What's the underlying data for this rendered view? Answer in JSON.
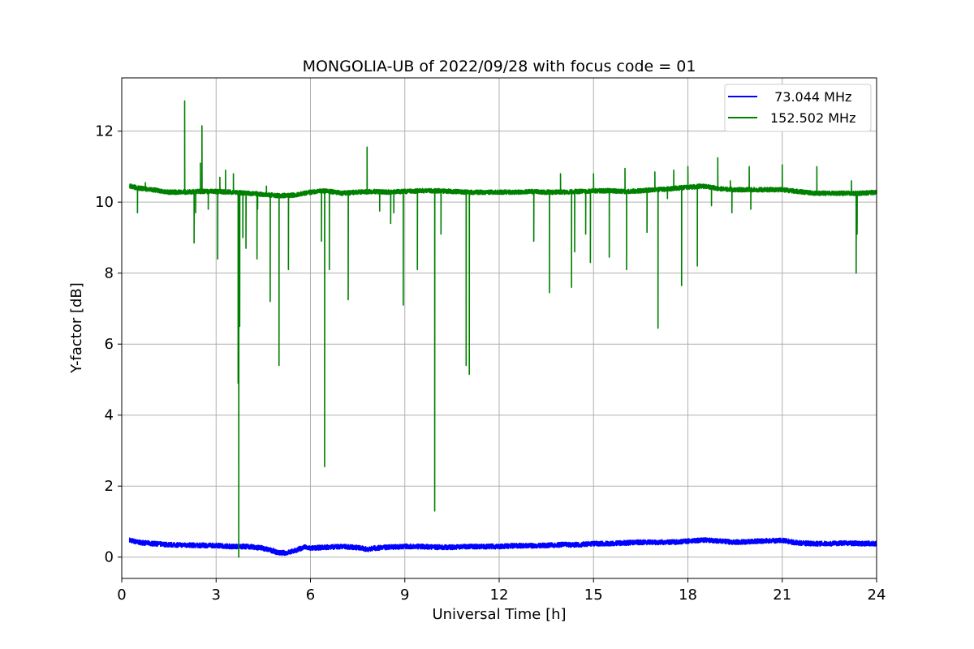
{
  "chart_data": {
    "type": "line",
    "title": "MONGOLIA-UB of 2022/09/28 with focus code = 01",
    "xlabel": "Universal Time [h]",
    "ylabel": "Y-factor [dB]",
    "xlim": [
      0,
      24
    ],
    "ylim": [
      -0.6,
      13.5
    ],
    "xticks": [
      0,
      3,
      6,
      9,
      12,
      15,
      18,
      21,
      24
    ],
    "yticks": [
      0,
      2,
      4,
      6,
      8,
      10,
      12
    ],
    "grid": true,
    "legend_position": "top-right",
    "series": [
      {
        "name": " 73.044 MHz",
        "color": "#0000ff",
        "x": [
          0.25,
          0.5,
          1.0,
          1.5,
          2.0,
          2.5,
          3.0,
          3.5,
          4.0,
          4.5,
          4.8,
          5.0,
          5.2,
          5.5,
          5.8,
          6.0,
          6.5,
          7.0,
          7.5,
          7.8,
          8.0,
          8.5,
          9.0,
          9.5,
          10.0,
          10.5,
          11.0,
          11.5,
          12.0,
          12.5,
          13.0,
          13.5,
          14.0,
          14.5,
          15.0,
          15.5,
          16.0,
          16.5,
          17.0,
          17.5,
          18.0,
          18.5,
          19.0,
          19.5,
          20.0,
          20.5,
          21.0,
          21.5,
          22.0,
          22.5,
          23.0,
          23.5,
          24.0
        ],
        "y": [
          0.48,
          0.42,
          0.38,
          0.35,
          0.34,
          0.33,
          0.33,
          0.3,
          0.3,
          0.25,
          0.18,
          0.12,
          0.12,
          0.18,
          0.28,
          0.25,
          0.28,
          0.3,
          0.27,
          0.22,
          0.25,
          0.28,
          0.3,
          0.3,
          0.28,
          0.28,
          0.3,
          0.3,
          0.3,
          0.32,
          0.32,
          0.33,
          0.35,
          0.35,
          0.38,
          0.38,
          0.4,
          0.42,
          0.42,
          0.42,
          0.45,
          0.48,
          0.45,
          0.42,
          0.44,
          0.46,
          0.47,
          0.4,
          0.38,
          0.38,
          0.4,
          0.38,
          0.38
        ]
      },
      {
        "name": "152.502 MHz",
        "color": "#008000",
        "x": [
          0.25,
          0.5,
          1.0,
          1.5,
          2.0,
          2.5,
          3.0,
          3.5,
          4.0,
          4.5,
          5.0,
          5.5,
          6.0,
          6.5,
          7.0,
          7.5,
          8.0,
          8.5,
          9.0,
          9.5,
          10.0,
          10.5,
          11.0,
          11.5,
          12.0,
          12.5,
          13.0,
          13.5,
          14.0,
          14.5,
          15.0,
          15.5,
          16.0,
          16.5,
          17.0,
          17.5,
          18.0,
          18.5,
          19.0,
          19.5,
          20.0,
          20.5,
          21.0,
          21.5,
          22.0,
          22.5,
          23.0,
          23.5,
          24.0
        ],
        "y": [
          10.45,
          10.4,
          10.35,
          10.28,
          10.28,
          10.3,
          10.3,
          10.28,
          10.25,
          10.22,
          10.18,
          10.2,
          10.28,
          10.32,
          10.25,
          10.28,
          10.3,
          10.28,
          10.3,
          10.32,
          10.32,
          10.3,
          10.28,
          10.28,
          10.28,
          10.28,
          10.3,
          10.28,
          10.28,
          10.3,
          10.32,
          10.32,
          10.3,
          10.32,
          10.35,
          10.38,
          10.42,
          10.45,
          10.38,
          10.35,
          10.35,
          10.35,
          10.35,
          10.3,
          10.25,
          10.25,
          10.25,
          10.25,
          10.28
        ],
        "spikes": [
          {
            "x": 0.5,
            "y": 9.7
          },
          {
            "x": 0.75,
            "y": 10.55
          },
          {
            "x": 2.0,
            "y": 12.85
          },
          {
            "x": 2.3,
            "y": 8.85
          },
          {
            "x": 2.35,
            "y": 9.7
          },
          {
            "x": 2.5,
            "y": 11.1
          },
          {
            "x": 2.55,
            "y": 12.15
          },
          {
            "x": 2.75,
            "y": 9.8
          },
          {
            "x": 3.05,
            "y": 8.4
          },
          {
            "x": 3.12,
            "y": 10.7
          },
          {
            "x": 3.3,
            "y": 10.9
          },
          {
            "x": 3.55,
            "y": 10.8
          },
          {
            "x": 3.7,
            "y": 4.9
          },
          {
            "x": 3.72,
            "y": 0.0
          },
          {
            "x": 3.75,
            "y": 6.5
          },
          {
            "x": 3.85,
            "y": 9.0
          },
          {
            "x": 3.95,
            "y": 8.7
          },
          {
            "x": 4.3,
            "y": 8.4
          },
          {
            "x": 4.32,
            "y": 9.8
          },
          {
            "x": 4.6,
            "y": 10.45
          },
          {
            "x": 4.72,
            "y": 7.2
          },
          {
            "x": 5.0,
            "y": 5.4
          },
          {
            "x": 5.3,
            "y": 8.1
          },
          {
            "x": 6.35,
            "y": 8.9
          },
          {
            "x": 6.45,
            "y": 2.55
          },
          {
            "x": 6.6,
            "y": 8.1
          },
          {
            "x": 7.2,
            "y": 7.25
          },
          {
            "x": 7.8,
            "y": 11.55
          },
          {
            "x": 8.2,
            "y": 9.75
          },
          {
            "x": 8.55,
            "y": 9.4
          },
          {
            "x": 8.65,
            "y": 9.7
          },
          {
            "x": 8.95,
            "y": 7.1
          },
          {
            "x": 9.4,
            "y": 8.1
          },
          {
            "x": 9.95,
            "y": 1.3
          },
          {
            "x": 10.15,
            "y": 9.1
          },
          {
            "x": 10.95,
            "y": 5.4
          },
          {
            "x": 11.05,
            "y": 5.15
          },
          {
            "x": 13.1,
            "y": 8.9
          },
          {
            "x": 13.6,
            "y": 7.45
          },
          {
            "x": 13.95,
            "y": 10.8
          },
          {
            "x": 14.3,
            "y": 7.6
          },
          {
            "x": 14.4,
            "y": 8.6
          },
          {
            "x": 14.75,
            "y": 9.1
          },
          {
            "x": 14.9,
            "y": 8.3
          },
          {
            "x": 15.0,
            "y": 10.8
          },
          {
            "x": 15.5,
            "y": 8.45
          },
          {
            "x": 16.0,
            "y": 10.95
          },
          {
            "x": 16.05,
            "y": 8.1
          },
          {
            "x": 16.7,
            "y": 9.15
          },
          {
            "x": 16.95,
            "y": 10.85
          },
          {
            "x": 17.05,
            "y": 6.45
          },
          {
            "x": 17.35,
            "y": 10.1
          },
          {
            "x": 17.55,
            "y": 10.9
          },
          {
            "x": 17.8,
            "y": 7.65
          },
          {
            "x": 18.0,
            "y": 11.0
          },
          {
            "x": 18.3,
            "y": 8.2
          },
          {
            "x": 18.75,
            "y": 9.9
          },
          {
            "x": 18.95,
            "y": 11.25
          },
          {
            "x": 19.35,
            "y": 10.6
          },
          {
            "x": 19.4,
            "y": 9.7
          },
          {
            "x": 19.95,
            "y": 11.0
          },
          {
            "x": 20.0,
            "y": 9.8
          },
          {
            "x": 21.0,
            "y": 11.05
          },
          {
            "x": 22.1,
            "y": 11.0
          },
          {
            "x": 23.2,
            "y": 10.6
          },
          {
            "x": 23.35,
            "y": 8.0
          },
          {
            "x": 23.38,
            "y": 9.1
          }
        ]
      }
    ]
  }
}
